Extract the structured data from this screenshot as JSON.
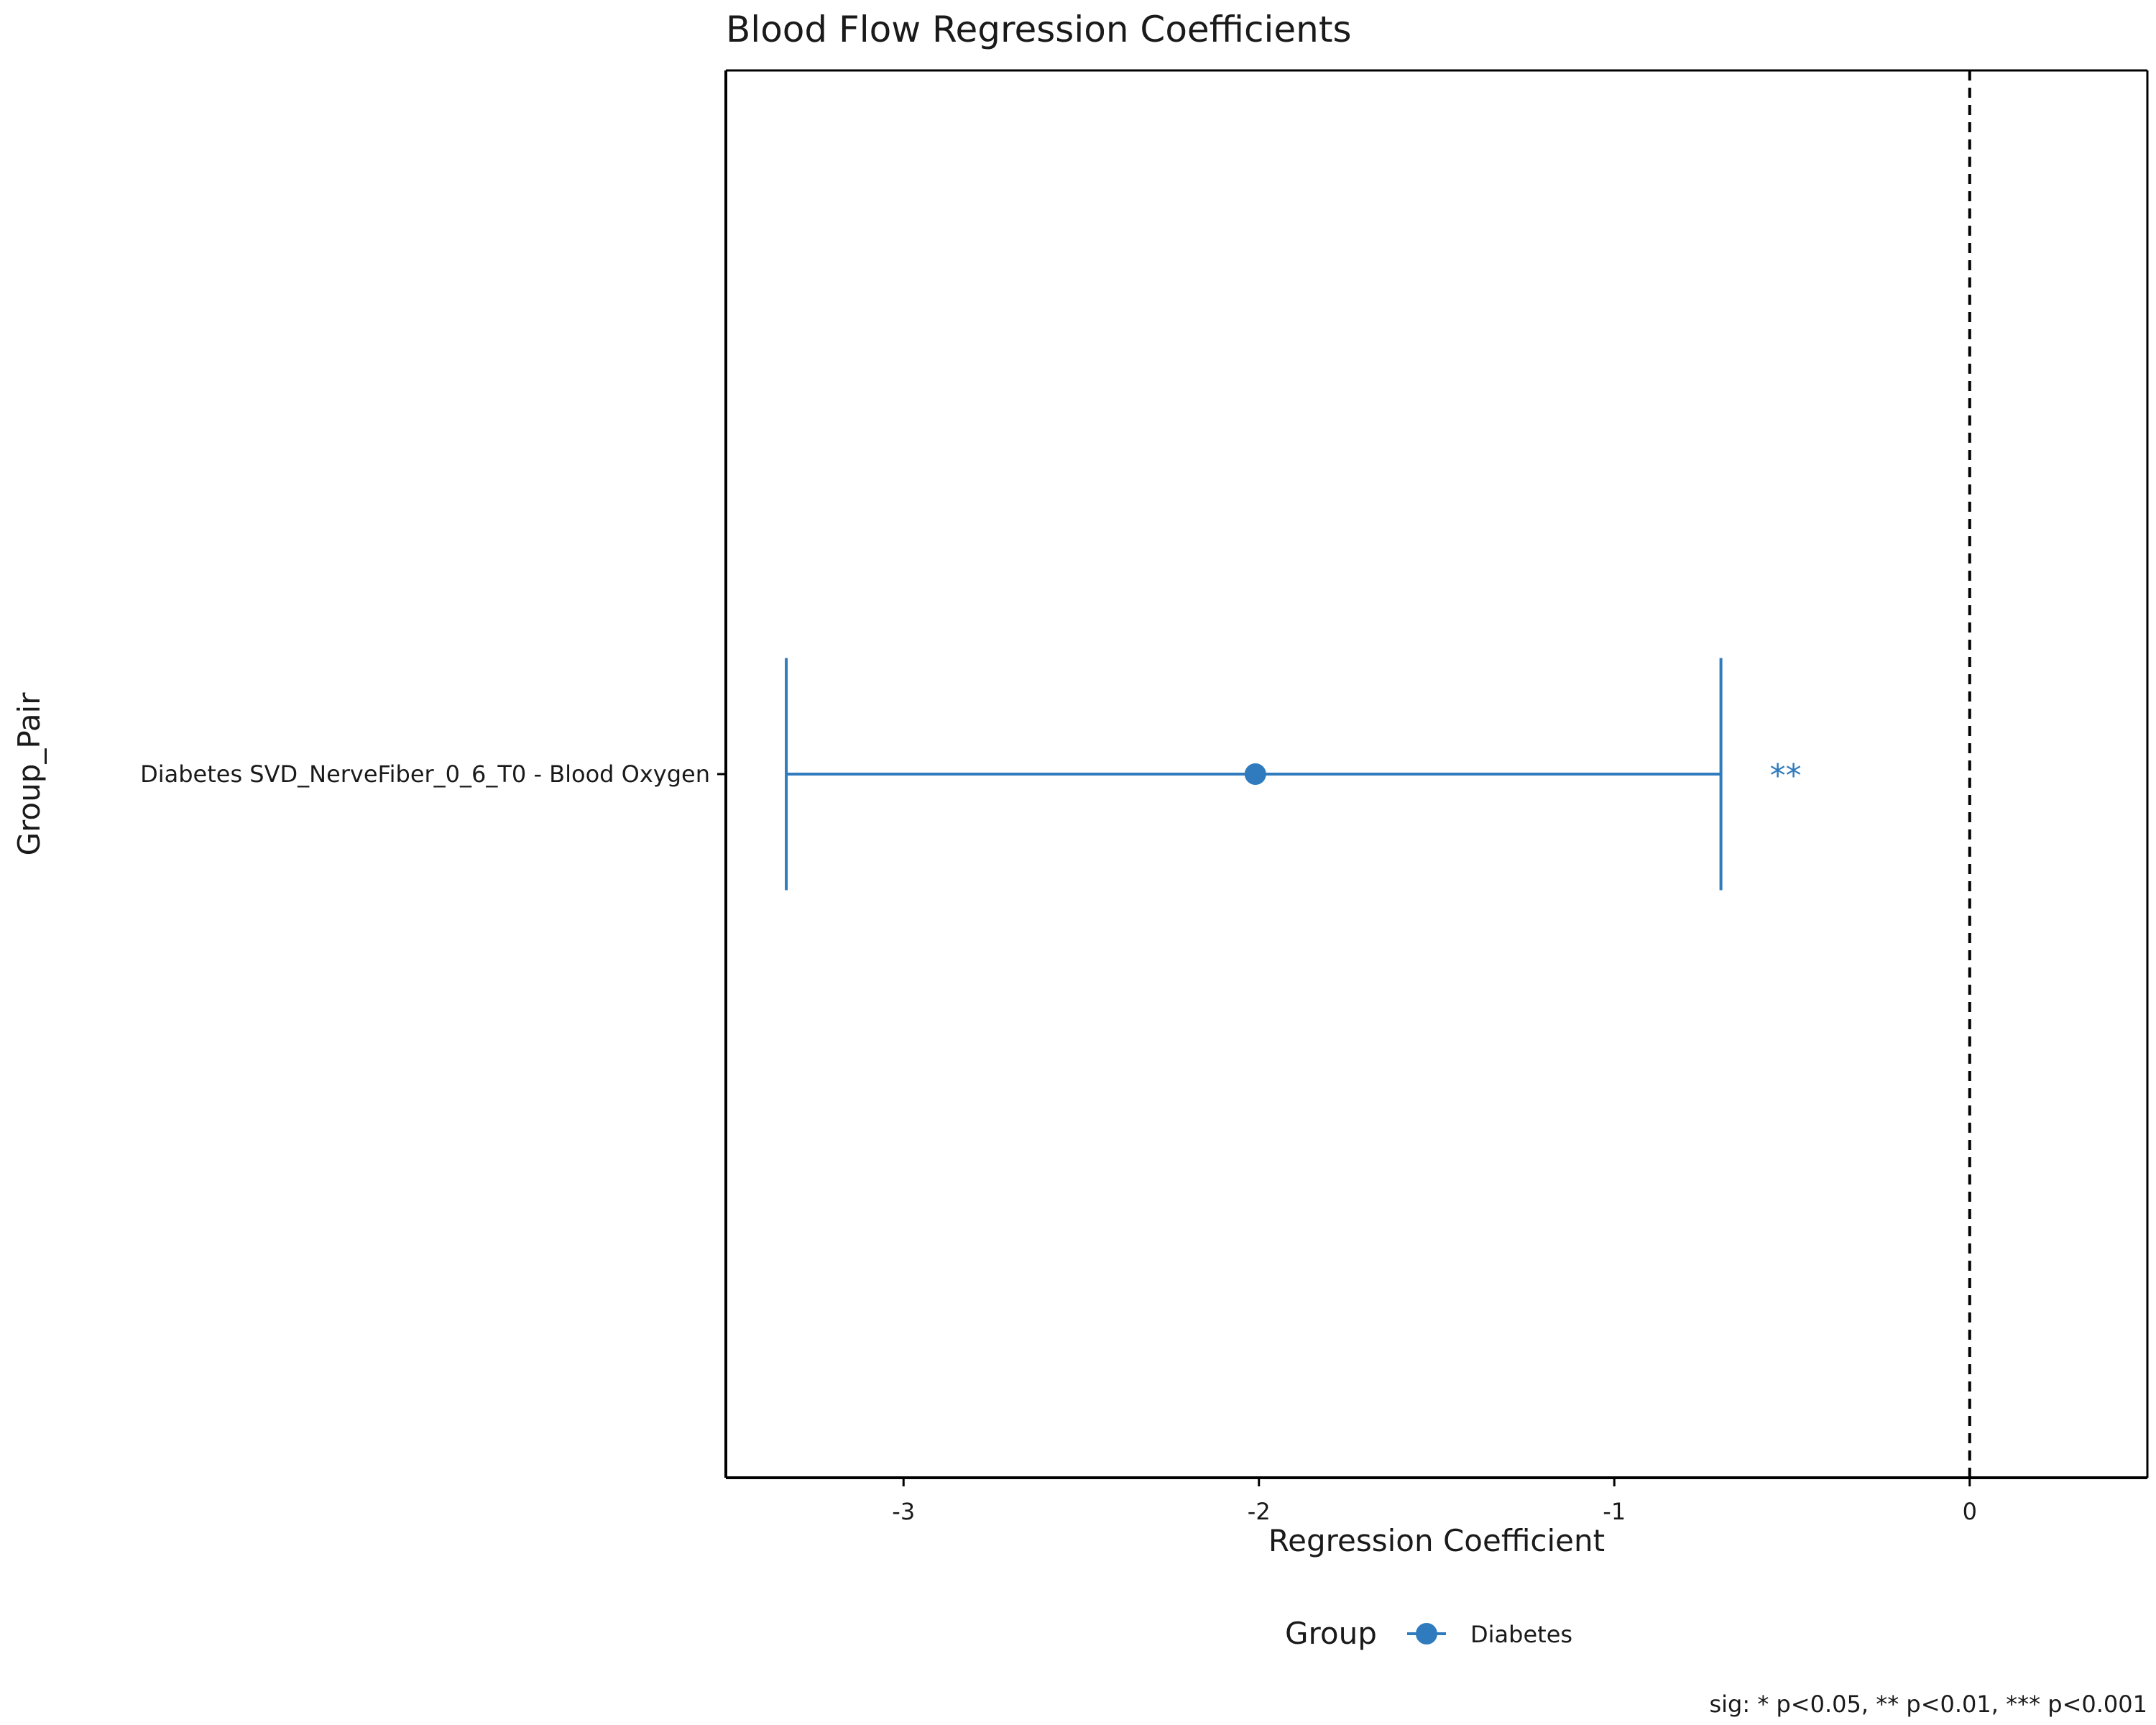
{
  "chart_data": {
    "type": "errorbar",
    "title": "Blood Flow Regression Coefficients",
    "xlabel": "Regression Coefficient",
    "ylabel": "Group_Pair",
    "xlim": [
      -3.5,
      0.5
    ],
    "xticks": [
      -3,
      -2,
      -1,
      0
    ],
    "xtick_labels": [
      "-3",
      "-2",
      "-1",
      "0"
    ],
    "reference_line": 0,
    "grid": false,
    "legend": {
      "title": "Group",
      "position": "bottom",
      "entries": [
        {
          "label": "Diabetes",
          "color": "#2f7bbd"
        }
      ]
    },
    "points": [
      {
        "category": "Diabetes SVD_NerveFiber_0_6_T0 - Blood Oxygen",
        "group": "Diabetes",
        "estimate": -2.01,
        "ci_low": -3.33,
        "ci_high": -0.7,
        "significance": "**"
      }
    ],
    "caption": "sig: * p<0.05, ** p<0.01, *** p<0.001"
  }
}
